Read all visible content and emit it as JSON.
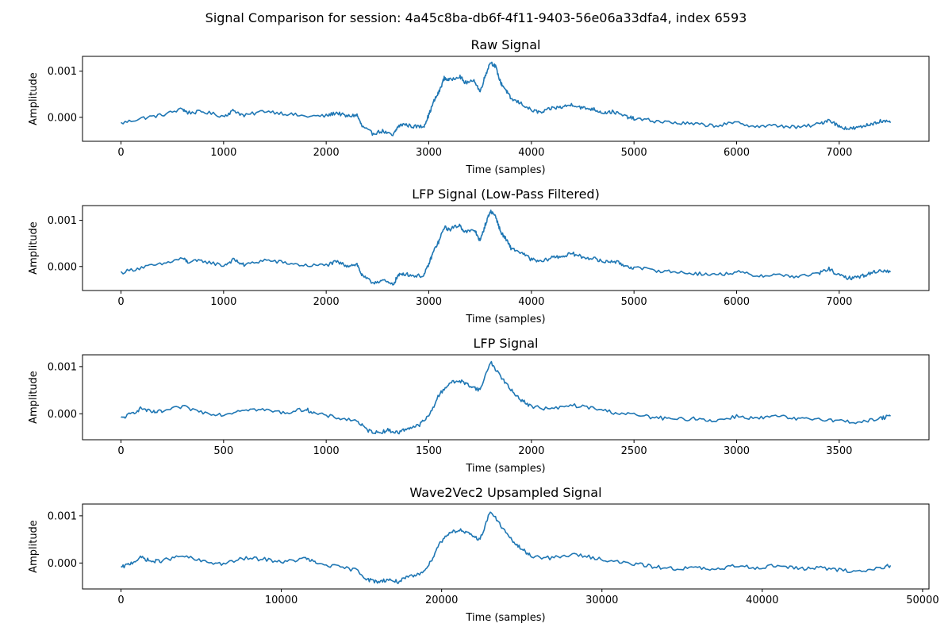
{
  "figure": {
    "title": "Signal Comparison for session: 4a45c8ba-db6f-4f11-9403-56e06a33dfa4, index 6593"
  },
  "chart_data": [
    {
      "type": "line",
      "title": "Raw Signal",
      "xlabel": "Time (samples)",
      "ylabel": "Amplitude",
      "xlim": [
        -375,
        7875
      ],
      "ylim": [
        -0.00052,
        0.00132
      ],
      "xticks": [
        0,
        1000,
        2000,
        3000,
        4000,
        5000,
        6000,
        7000
      ],
      "xtick_labels": [
        "0",
        "1000",
        "2000",
        "3000",
        "4000",
        "5000",
        "6000",
        "7000"
      ],
      "yticks": [
        0.0,
        0.001
      ],
      "ytick_labels": [
        "0.000",
        "0.001"
      ],
      "grid": false,
      "color": "#1f77b4",
      "series": [
        {
          "x": [
            0,
            200,
            400,
            600,
            650,
            800,
            1000,
            1100,
            1200,
            1400,
            1600,
            1800,
            2000,
            2100,
            2200,
            2300,
            2350,
            2450,
            2550,
            2650,
            2700,
            2750,
            2850,
            2950,
            3000,
            3050,
            3100,
            3150,
            3200,
            3300,
            3350,
            3450,
            3500,
            3550,
            3600,
            3650,
            3700,
            3750,
            3800,
            3900,
            4000,
            4100,
            4200,
            4300,
            4400,
            4500,
            4600,
            4700,
            4800,
            4900,
            5000,
            5200,
            5400,
            5600,
            5800,
            6000,
            6200,
            6400,
            6600,
            6800,
            6900,
            7000,
            7100,
            7200,
            7300,
            7400,
            7500
          ],
          "y": [
            -0.00013,
            -2e-05,
            5e-05,
            0.00018,
            0.0001,
            0.00012,
            2e-05,
            0.00015,
            3e-05,
            0.00014,
            8e-05,
            2e-05,
            3e-05,
            0.0001,
            2e-05,
            5e-05,
            -0.0002,
            -0.00035,
            -0.0003,
            -0.0004,
            -0.0002,
            -0.00015,
            -0.0002,
            -0.0002,
            5e-05,
            0.00035,
            0.00055,
            0.00085,
            0.0008,
            0.0009,
            0.00075,
            0.00078,
            0.00055,
            0.0009,
            0.0012,
            0.0011,
            0.00075,
            0.0006,
            0.0004,
            0.0003,
            0.00015,
            0.0001,
            0.0002,
            0.00022,
            0.00028,
            0.0002,
            0.00018,
            0.0001,
            0.00012,
            3e-05,
            -3e-05,
            -8e-05,
            -0.00012,
            -0.00015,
            -0.00018,
            -0.00012,
            -0.0002,
            -0.00018,
            -0.00022,
            -0.00015,
            -5e-05,
            -0.0002,
            -0.00025,
            -0.00022,
            -0.00015,
            -8e-05,
            -0.00012
          ]
        }
      ]
    },
    {
      "type": "line",
      "title": "LFP Signal (Low-Pass Filtered)",
      "xlabel": "Time (samples)",
      "ylabel": "Amplitude",
      "xlim": [
        -375,
        7875
      ],
      "ylim": [
        -0.00052,
        0.00132
      ],
      "xticks": [
        0,
        1000,
        2000,
        3000,
        4000,
        5000,
        6000,
        7000
      ],
      "xtick_labels": [
        "0",
        "1000",
        "2000",
        "3000",
        "4000",
        "5000",
        "6000",
        "7000"
      ],
      "yticks": [
        0.0,
        0.001
      ],
      "ytick_labels": [
        "0.000",
        "0.001"
      ],
      "grid": false,
      "color": "#1f77b4",
      "series": [
        {
          "x": [
            0,
            200,
            400,
            600,
            650,
            800,
            1000,
            1100,
            1200,
            1400,
            1600,
            1800,
            2000,
            2100,
            2200,
            2300,
            2350,
            2450,
            2550,
            2650,
            2700,
            2750,
            2850,
            2950,
            3000,
            3050,
            3100,
            3150,
            3200,
            3300,
            3350,
            3450,
            3500,
            3550,
            3600,
            3650,
            3700,
            3750,
            3800,
            3900,
            4000,
            4100,
            4200,
            4300,
            4400,
            4500,
            4600,
            4700,
            4800,
            4900,
            5000,
            5200,
            5400,
            5600,
            5800,
            6000,
            6200,
            6400,
            6600,
            6800,
            6900,
            7000,
            7100,
            7200,
            7300,
            7400,
            7500
          ],
          "y": [
            -0.00013,
            -2e-05,
            5e-05,
            0.00018,
            0.0001,
            0.00012,
            2e-05,
            0.00015,
            3e-05,
            0.00014,
            8e-05,
            2e-05,
            3e-05,
            0.0001,
            2e-05,
            5e-05,
            -0.0002,
            -0.00035,
            -0.0003,
            -0.0004,
            -0.0002,
            -0.00015,
            -0.0002,
            -0.0002,
            5e-05,
            0.00035,
            0.00055,
            0.00085,
            0.0008,
            0.0009,
            0.00075,
            0.00078,
            0.00055,
            0.0009,
            0.0012,
            0.0011,
            0.00075,
            0.0006,
            0.0004,
            0.0003,
            0.00015,
            0.0001,
            0.0002,
            0.00022,
            0.00028,
            0.0002,
            0.00018,
            0.0001,
            0.00012,
            3e-05,
            -3e-05,
            -8e-05,
            -0.00012,
            -0.00015,
            -0.00018,
            -0.00012,
            -0.0002,
            -0.00018,
            -0.00022,
            -0.00015,
            -5e-05,
            -0.0002,
            -0.00025,
            -0.00022,
            -0.00015,
            -8e-05,
            -0.00012
          ]
        }
      ]
    },
    {
      "type": "line",
      "title": "LFP Signal",
      "xlabel": "Time (samples)",
      "ylabel": "Amplitude",
      "xlim": [
        -187.5,
        3937.5
      ],
      "ylim": [
        -0.00055,
        0.00125
      ],
      "xticks": [
        0,
        500,
        1000,
        1500,
        2000,
        2500,
        3000,
        3500
      ],
      "xtick_labels": [
        "0",
        "500",
        "1000",
        "1500",
        "2000",
        "2500",
        "3000",
        "3500"
      ],
      "yticks": [
        0.0,
        0.001
      ],
      "ytick_labels": [
        "0.000",
        "0.001"
      ],
      "grid": false,
      "color": "#1f77b4",
      "series": [
        {
          "x": [
            0,
            50,
            100,
            150,
            200,
            300,
            400,
            500,
            600,
            700,
            800,
            900,
            950,
            1050,
            1150,
            1200,
            1250,
            1300,
            1350,
            1400,
            1450,
            1500,
            1550,
            1600,
            1650,
            1700,
            1750,
            1800,
            1850,
            1900,
            1950,
            2000,
            2100,
            2200,
            2300,
            2400,
            2500,
            2600,
            2700,
            2800,
            2900,
            3000,
            3100,
            3200,
            3300,
            3400,
            3500,
            3600,
            3700,
            3750
          ],
          "y": [
            -0.0001,
            0.0,
            0.00012,
            3e-05,
            5e-05,
            0.00015,
            3e-05,
            -2e-05,
            0.0001,
            8e-05,
            2e-05,
            0.0001,
            0.0,
            -8e-05,
            -0.00015,
            -0.00035,
            -0.0004,
            -0.00035,
            -0.0004,
            -0.0003,
            -0.00025,
            -5e-05,
            0.0004,
            0.00065,
            0.0007,
            0.0006,
            0.0005,
            0.0011,
            0.0008,
            0.0005,
            0.0003,
            0.00015,
            0.0001,
            0.00018,
            0.00012,
            3e-05,
            -2e-05,
            -8e-05,
            -0.00012,
            -0.0001,
            -0.00015,
            -5e-05,
            -0.0001,
            -5e-05,
            -0.00012,
            -0.0001,
            -0.00015,
            -0.00018,
            -0.0001,
            -5e-05
          ]
        }
      ]
    },
    {
      "type": "line",
      "title": "Wave2Vec2 Upsampled Signal",
      "xlabel": "Time (samples)",
      "ylabel": "Amplitude",
      "xlim": [
        -2400,
        50400
      ],
      "ylim": [
        -0.00055,
        0.00125
      ],
      "xticks": [
        0,
        10000,
        20000,
        30000,
        40000,
        50000
      ],
      "xtick_labels": [
        "0",
        "10000",
        "20000",
        "30000",
        "40000",
        "50000"
      ],
      "yticks": [
        0.0,
        0.001
      ],
      "ytick_labels": [
        "0.000",
        "0.001"
      ],
      "grid": false,
      "color": "#1f77b4",
      "series": [
        {
          "x": [
            0,
            640,
            1280,
            1920,
            2560,
            3840,
            5120,
            6400,
            7680,
            8960,
            10240,
            11520,
            12160,
            13440,
            14720,
            15360,
            16000,
            16640,
            17280,
            17920,
            18560,
            19200,
            19840,
            20480,
            21120,
            21760,
            22400,
            23040,
            23680,
            24320,
            24960,
            25600,
            26880,
            28160,
            29440,
            30720,
            32000,
            33280,
            34560,
            35840,
            37120,
            38400,
            39680,
            40960,
            42240,
            43520,
            44800,
            46080,
            47360,
            48000
          ],
          "y": [
            -0.0001,
            0.0,
            0.00012,
            3e-05,
            5e-05,
            0.00015,
            3e-05,
            -2e-05,
            0.0001,
            8e-05,
            2e-05,
            0.0001,
            0.0,
            -8e-05,
            -0.00015,
            -0.00035,
            -0.0004,
            -0.00035,
            -0.0004,
            -0.0003,
            -0.00025,
            -5e-05,
            0.0004,
            0.00065,
            0.0007,
            0.0006,
            0.0005,
            0.0011,
            0.0008,
            0.0005,
            0.0003,
            0.00015,
            0.0001,
            0.00018,
            0.00012,
            3e-05,
            -2e-05,
            -8e-05,
            -0.00012,
            -0.0001,
            -0.00015,
            -5e-05,
            -0.0001,
            -5e-05,
            -0.00012,
            -0.0001,
            -0.00015,
            -0.00018,
            -0.0001,
            -5e-05
          ]
        }
      ]
    }
  ]
}
